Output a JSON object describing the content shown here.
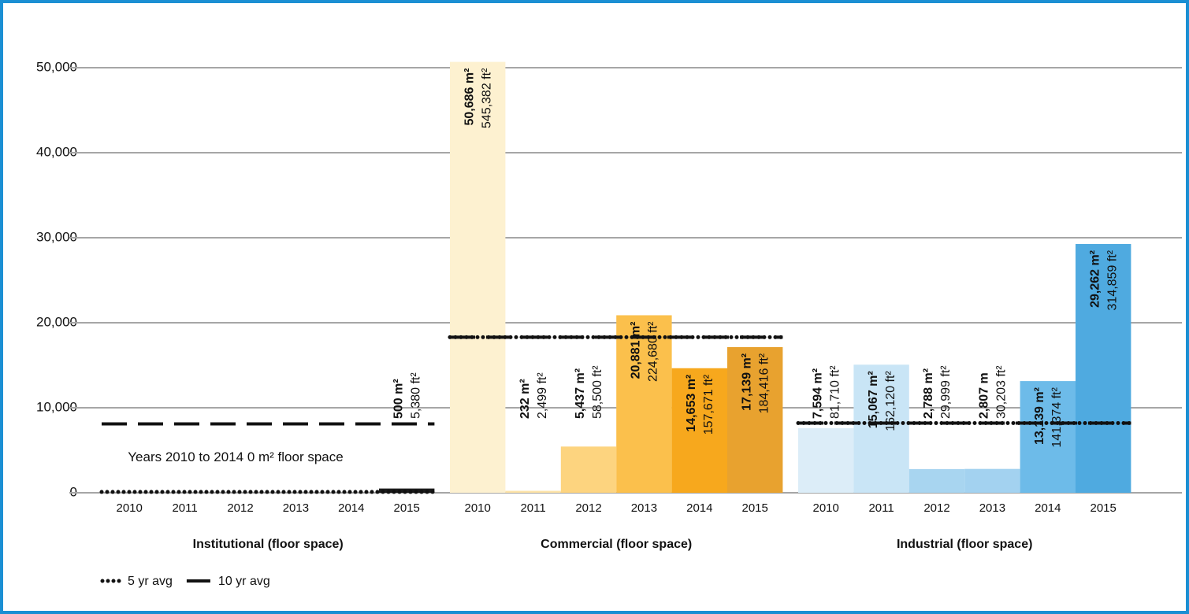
{
  "chart_data": {
    "type": "bar",
    "ylim": [
      0,
      55000
    ],
    "yticks": [
      0,
      {
        "value": 10000,
        "label": "10,000"
      },
      {
        "value": 20000,
        "label": "20,000"
      },
      {
        "value": 30000,
        "label": "30,000"
      },
      {
        "value": 40000,
        "label": "40,000"
      },
      {
        "value": 50000,
        "label": "50,000"
      }
    ],
    "grid": true,
    "annotation": "Years 2010 to 2014 0 m² floor space",
    "average_lines": [
      {
        "name": "5 yr avg",
        "style": "dotted",
        "color": "#111111"
      },
      {
        "name": "10 yr avg",
        "style": "dashed",
        "color": "#111111"
      }
    ],
    "groups": [
      {
        "name": "Institutional (floor space)",
        "categories": [
          "2010",
          "2011",
          "2012",
          "2013",
          "2014",
          "2015"
        ],
        "values": [
          0,
          0,
          0,
          0,
          0,
          500
        ],
        "colors": [
          "#1a1a1a",
          "#1a1a1a",
          "#1a1a1a",
          "#1a1a1a",
          "#1a1a1a",
          "#1a1a1a"
        ],
        "value_labels": [
          null,
          null,
          null,
          null,
          null,
          "500 m²"
        ],
        "sqft_labels": [
          null,
          null,
          null,
          null,
          null,
          "5,380 ft²"
        ],
        "averages": [
          100,
          8100
        ]
      },
      {
        "name": "Commercial (floor space)",
        "categories": [
          "2010",
          "2011",
          "2012",
          "2013",
          "2014",
          "2015"
        ],
        "values": [
          50686,
          232,
          5437,
          20881,
          14653,
          17139
        ],
        "colors": [
          "#fdf1d0",
          "#fde3a8",
          "#fdd47f",
          "#fbc04c",
          "#f7a81d",
          "#e8a22f"
        ],
        "value_labels": [
          "50,686 m²",
          "232 m²",
          "5,437 m²",
          "20,881 m²",
          "14,653 m²",
          "17,139 m²"
        ],
        "sqft_labels": [
          "545,382 ft²",
          "2,499 ft²",
          "58,500 ft²",
          "224,680 ft²",
          "157,671 ft²",
          "184,416 ft²"
        ],
        "averages": [
          18300,
          18300
        ]
      },
      {
        "name": "Industrial (floor space)",
        "categories": [
          "2010",
          "2011",
          "2012",
          "2013",
          "2014",
          "2015"
        ],
        "values": [
          7594,
          15067,
          2788,
          2807,
          13139,
          29262
        ],
        "colors": [
          "#dcedf8",
          "#c9e5f6",
          "#a8d5f0",
          "#a3d2f0",
          "#6dbbe9",
          "#4faae0"
        ],
        "value_labels": [
          "7,594 m²",
          "15,067 m²",
          "2,788 m²",
          "2,807 m",
          "13,139 m²",
          "29,262 m²"
        ],
        "sqft_labels": [
          "81,710 ft²",
          "162,120 ft²",
          "29,999 ft²",
          "30,203 ft²",
          "141,374 ft²",
          "314,859 ft²"
        ],
        "averages": [
          8200,
          8200
        ]
      }
    ]
  }
}
